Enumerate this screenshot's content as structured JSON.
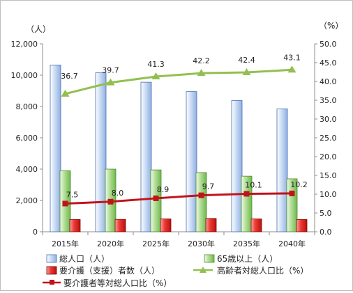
{
  "chart_data": {
    "type": "bar",
    "categories": [
      "2015年",
      "2020年",
      "2025年",
      "2030年",
      "2035年",
      "2040年"
    ],
    "left_axis": {
      "unit_label": "（人）",
      "ylim": [
        0,
        12000
      ],
      "ticks": [
        "0",
        "2,000",
        "4,000",
        "6,000",
        "8,000",
        "10,000",
        "12,000"
      ]
    },
    "right_axis": {
      "unit_label": "（%）",
      "ylim": [
        0,
        50
      ],
      "ticks": [
        "0.0",
        "5.0",
        "10.0",
        "15.0",
        "20.0",
        "25.0",
        "30.0",
        "35.0",
        "40.0",
        "45.0",
        "50.0"
      ]
    },
    "series": [
      {
        "name": "総人口（人）",
        "kind": "bar",
        "axis": "left",
        "color": "#a9c3ea",
        "values": [
          10650,
          10150,
          9550,
          8950,
          8380,
          7850
        ]
      },
      {
        "name": "65歳以上（人）",
        "kind": "bar",
        "axis": "left",
        "color": "#9bd27e",
        "values": [
          3900,
          4000,
          3950,
          3780,
          3550,
          3380
        ]
      },
      {
        "name": "要介護（支援）者数（人）",
        "kind": "bar",
        "axis": "left",
        "color": "#e8231f",
        "values": [
          780,
          790,
          820,
          850,
          820,
          780
        ]
      },
      {
        "name": "高齢者対総人口比（%）",
        "kind": "line",
        "axis": "right",
        "color": "#92c04f",
        "marker": "triangle",
        "values": [
          36.7,
          39.7,
          41.3,
          42.2,
          42.4,
          43.1
        ],
        "labels": [
          "36.7",
          "39.7",
          "41.3",
          "42.2",
          "42.4",
          "43.1"
        ]
      },
      {
        "name": "要介護者等対総人口比（%）",
        "kind": "line",
        "axis": "right",
        "color": "#c0141c",
        "marker": "square",
        "values": [
          7.5,
          8.0,
          8.9,
          9.7,
          10.1,
          10.2
        ],
        "labels": [
          "7.5",
          "8.0",
          "8.9",
          "9.7",
          "10.1",
          "10.2"
        ]
      }
    ],
    "grid": false,
    "legend_position": "bottom"
  }
}
